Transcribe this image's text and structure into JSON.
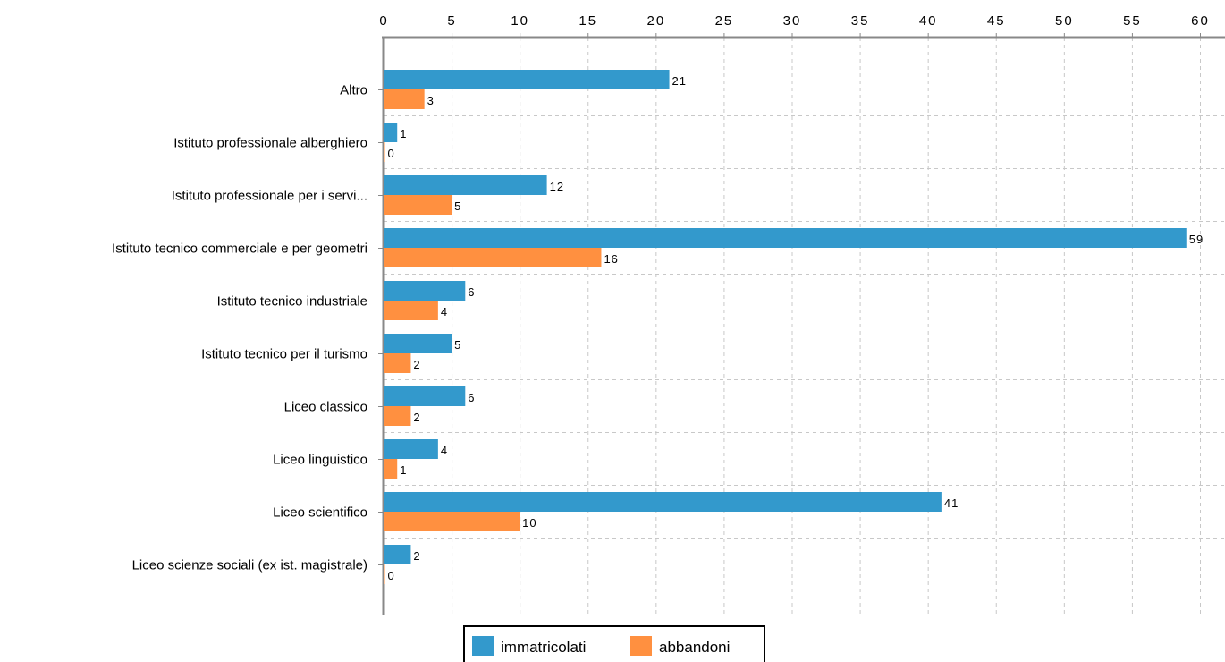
{
  "chart_data": {
    "type": "bar",
    "orientation": "horizontal",
    "categories": [
      "Altro",
      "Istituto professionale alberghiero",
      "Istituto professionale per i servi...",
      "Istituto tecnico commerciale e per geometri",
      "Istituto tecnico industriale",
      "Istituto tecnico per il turismo",
      "Liceo classico",
      "Liceo linguistico",
      "Liceo scientifico",
      "Liceo scienze sociali (ex ist. magistrale)"
    ],
    "series": [
      {
        "name": "immatricolati",
        "color": "#3399cc",
        "values": [
          21,
          1,
          12,
          59,
          6,
          5,
          6,
          4,
          41,
          2
        ]
      },
      {
        "name": "abbandoni",
        "color": "#ff9040",
        "values": [
          3,
          0,
          5,
          16,
          4,
          2,
          2,
          1,
          10,
          0
        ]
      }
    ],
    "xlim": [
      0,
      60
    ],
    "x_ticks": [
      0,
      5,
      10,
      15,
      20,
      25,
      30,
      35,
      40,
      45,
      50,
      55,
      60
    ],
    "x_axis_position": "top",
    "grid": true,
    "grid_style": "dashed",
    "data_labels": true,
    "legend_position": "bottom-center",
    "title": "",
    "xlabel": "",
    "ylabel": ""
  }
}
